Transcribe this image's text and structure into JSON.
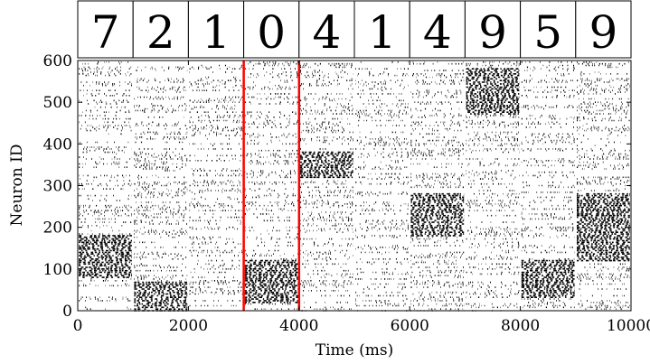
{
  "chart_data": {
    "type": "scatter",
    "title": "",
    "xlabel": "Time (ms)",
    "ylabel": "Neuron ID",
    "xlim": [
      0,
      10000
    ],
    "ylim": [
      0,
      600
    ],
    "xticks": [
      0,
      2000,
      4000,
      6000,
      8000,
      10000
    ],
    "xtick_labels": [
      "0",
      "2000",
      "4000",
      "6000",
      "8000",
      "10000"
    ],
    "yticks": [
      0,
      100,
      200,
      300,
      400,
      500,
      600
    ],
    "ytick_labels": [
      "0",
      "100",
      "200",
      "300",
      "400",
      "500",
      "600"
    ],
    "grid": false,
    "marker_color": "#000000",
    "input_digits": [
      "7",
      "2",
      "1",
      "0",
      "4",
      "1",
      "4",
      "9",
      "5",
      "9"
    ],
    "segments": [
      {
        "digit": "7",
        "t_start": 0,
        "t_end": 1000,
        "dense_band": [
          80,
          180
        ]
      },
      {
        "digit": "2",
        "t_start": 1000,
        "t_end": 2000,
        "dense_band": [
          0,
          70
        ]
      },
      {
        "digit": "1",
        "t_start": 2000,
        "t_end": 3000,
        "dense_band": null
      },
      {
        "digit": "0",
        "t_start": 3000,
        "t_end": 4000,
        "dense_band": [
          20,
          120
        ]
      },
      {
        "digit": "4",
        "t_start": 4000,
        "t_end": 5000,
        "dense_band": [
          320,
          380
        ]
      },
      {
        "digit": "1",
        "t_start": 5000,
        "t_end": 6000,
        "dense_band": null
      },
      {
        "digit": "4",
        "t_start": 6000,
        "t_end": 7000,
        "dense_band": [
          180,
          280
        ]
      },
      {
        "digit": "9",
        "t_start": 7000,
        "t_end": 8000,
        "dense_band": [
          470,
          580
        ]
      },
      {
        "digit": "5",
        "t_start": 8000,
        "t_end": 9000,
        "dense_band": [
          30,
          120
        ]
      },
      {
        "digit": "9",
        "t_start": 9000,
        "t_end": 10000,
        "dense_band": [
          120,
          280
        ]
      }
    ],
    "highlight_window": {
      "x_start": 3000,
      "x_end": 4000,
      "color": "#ff0000"
    }
  }
}
